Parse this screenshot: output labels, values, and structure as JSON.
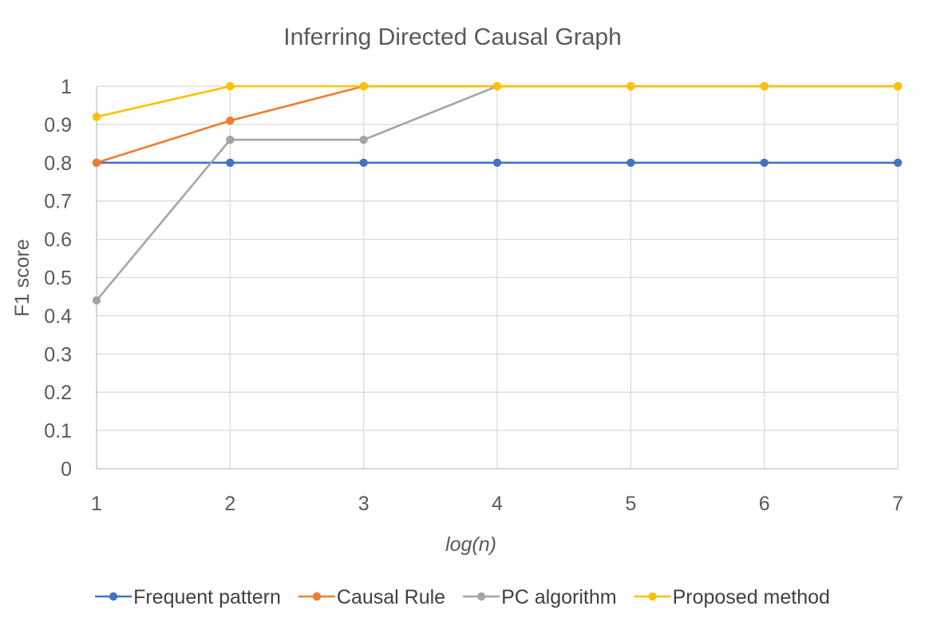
{
  "chart_data": {
    "type": "line",
    "title": "Inferring Directed Causal Graph",
    "xlabel": "log(n)",
    "ylabel": "F1 score",
    "x": [
      1,
      2,
      3,
      4,
      5,
      6,
      7
    ],
    "xlim": [
      1,
      7
    ],
    "ylim": [
      0,
      1
    ],
    "y_ticks": [
      "0",
      "0.1",
      "0.2",
      "0.3",
      "0.4",
      "0.5",
      "0.6",
      "0.7",
      "0.8",
      "0.9",
      "1"
    ],
    "x_ticks": [
      "1",
      "2",
      "3",
      "4",
      "5",
      "6",
      "7"
    ],
    "grid": true,
    "legend_position": "bottom",
    "series": [
      {
        "name": "Frequent pattern",
        "color": "#4472c4",
        "values": [
          0.8,
          0.8,
          0.8,
          0.8,
          0.8,
          0.8,
          0.8
        ]
      },
      {
        "name": "Causal Rule",
        "color": "#ed7d31",
        "values": [
          0.8,
          0.91,
          1.0,
          1.0,
          1.0,
          1.0,
          1.0
        ]
      },
      {
        "name": "PC algorithm",
        "color": "#a5a5a5",
        "values": [
          0.44,
          0.86,
          0.86,
          1.0,
          1.0,
          1.0,
          1.0
        ]
      },
      {
        "name": "Proposed method",
        "color": "#ffc000",
        "values": [
          0.92,
          1.0,
          1.0,
          1.0,
          1.0,
          1.0,
          1.0
        ]
      }
    ]
  }
}
